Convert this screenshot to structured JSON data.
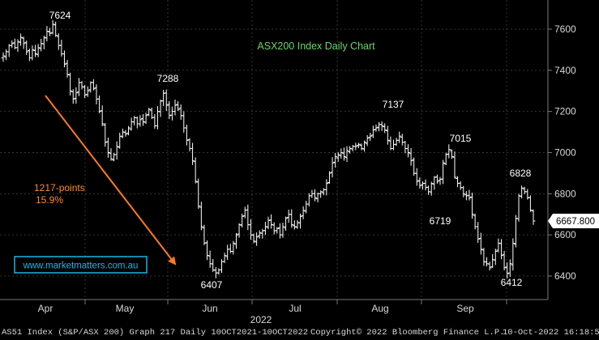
{
  "chart_data": {
    "type": "ohlc",
    "title": "ASX200 Index Daily Chart",
    "year_label": "2022",
    "month_labels": [
      "Apr",
      "May",
      "Jun",
      "Jul",
      "Aug",
      "Sep"
    ],
    "y_ticks": [
      "6400",
      "6600",
      "6800",
      "7000",
      "7200",
      "7400",
      "7600"
    ],
    "ylim": [
      6330,
      7730
    ],
    "grid": true,
    "last_price": "6667.800",
    "colors": {
      "background": "#000000",
      "bars": "#ffffff",
      "grid": "#3a3a3a",
      "title": "#6ad66a",
      "arrow": "#ff7a1e",
      "annotation": "#ff8a2a",
      "watermark": "#19b6e6"
    },
    "annotations": {
      "peak_apr": "7624",
      "peak_may": "7288",
      "low_jun": "6407",
      "peak_aug": "7137",
      "low_sep_early": "6719",
      "peak_sep": "7015",
      "low_sep": "6412",
      "peak_oct": "6828",
      "fall_points": "1217-points",
      "fall_pct": "15.9%"
    },
    "watermark": "www.marketmatters.com.au",
    "closes": [
      7470,
      7490,
      7520,
      7530,
      7510,
      7540,
      7560,
      7530,
      7490,
      7460,
      7500,
      7480,
      7510,
      7530,
      7560,
      7590,
      7580,
      7624,
      7570,
      7520,
      7480,
      7430,
      7380,
      7300,
      7260,
      7290,
      7340,
      7320,
      7280,
      7300,
      7340,
      7310,
      7260,
      7200,
      7140,
      7050,
      7000,
      6970,
      6990,
      7030,
      7080,
      7100,
      7090,
      7120,
      7150,
      7170,
      7140,
      7160,
      7150,
      7180,
      7210,
      7170,
      7130,
      7200,
      7250,
      7288,
      7230,
      7180,
      7200,
      7230,
      7210,
      7180,
      7120,
      7060,
      7020,
      6960,
      6860,
      6740,
      6640,
      6560,
      6500,
      6460,
      6430,
      6415,
      6430,
      6470,
      6500,
      6530,
      6520,
      6560,
      6600,
      6650,
      6690,
      6720,
      6650,
      6600,
      6570,
      6590,
      6610,
      6620,
      6640,
      6670,
      6650,
      6620,
      6630,
      6600,
      6640,
      6680,
      6700,
      6650,
      6640,
      6660,
      6690,
      6720,
      6750,
      6790,
      6800,
      6780,
      6800,
      6810,
      6820,
      6850,
      6900,
      6950,
      6980,
      6990,
      7000,
      6980,
      7010,
      7020,
      7030,
      7030,
      7040,
      7020,
      7050,
      7070,
      7080,
      7110,
      7120,
      7137,
      7130,
      7110,
      7060,
      7020,
      7040,
      7060,
      7080,
      7050,
      7020,
      7000,
      6960,
      6900,
      6860,
      6840,
      6850,
      6830,
      6810,
      6850,
      6880,
      6860,
      6870,
      6950,
      6990,
      7015,
      6980,
      6880,
      6850,
      6830,
      6800,
      6790,
      6780,
      6700,
      6640,
      6580,
      6530,
      6470,
      6460,
      6440,
      6480,
      6520,
      6560,
      6500,
      6440,
      6412,
      6460,
      6560,
      6680,
      6790,
      6828,
      6810,
      6780,
      6720,
      6667.8
    ]
  }
}
